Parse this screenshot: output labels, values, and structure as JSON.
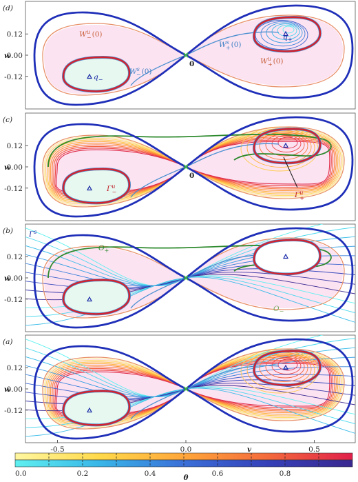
{
  "figure": {
    "panels": [
      {
        "tag": "(d)",
        "ylabel": "w",
        "yticks": [
          "0.12",
          "0.00",
          "-0.12"
        ],
        "annotations": {
          "Wu_minus": "W",
          "Wu_minus_sup": "u",
          "Wu_minus_sub": "−",
          "Wu_minus_arg": "(0)",
          "Ws_minus": "W",
          "Ws_minus_sup": "s",
          "Ws_minus_sub": "−",
          "Ws_minus_arg": "(0)",
          "Ws_plus": "W",
          "Ws_plus_sup": "s",
          "Ws_plus_sub": "+",
          "Ws_plus_arg": "(0)",
          "Wu_plus": "W",
          "Wu_plus_sup": "u",
          "Wu_plus_sub": "+",
          "Wu_plus_arg": "(0)",
          "origin": "0",
          "q_plus": "q",
          "q_plus_sub": "+",
          "q_minus": "q",
          "q_minus_sub": "−"
        }
      },
      {
        "tag": "(c)",
        "ylabel": "w",
        "yticks": [
          "0.12",
          "0.00",
          "-0.12"
        ],
        "annotations": {
          "origin": "0",
          "Gamma_minus": "Γ",
          "Gamma_minus_sup": "u",
          "Gamma_minus_sub": "−",
          "Gamma_plus": "Γ",
          "Gamma_plus_sup": "u",
          "Gamma_plus_sub": "+"
        }
      },
      {
        "tag": "(b)",
        "ylabel": "w",
        "yticks": [
          "0.12",
          "0.00",
          "-0.12"
        ],
        "annotations": {
          "Gamma_s": "Γ",
          "Gamma_s_sup": "s",
          "O_plus": "O",
          "O_plus_sub": "+",
          "O_minus": "O",
          "O_minus_sub": "−"
        }
      },
      {
        "tag": "(a)",
        "ylabel": "w",
        "yticks": [
          "0.12",
          "0.00",
          "-0.12"
        ],
        "annotations": {}
      }
    ],
    "xaxis": {
      "label": "v",
      "ticks": [
        "-0.5",
        "0.0",
        "0.5"
      ]
    },
    "colorbar": {
      "label": "θ",
      "ticks": [
        "0.0",
        "0.2",
        "0.4",
        "0.6",
        "0.8"
      ],
      "top_gradient": [
        "#fff8a0",
        "#ffd84a",
        "#ffa63a",
        "#f46a3c",
        "#e0204a"
      ],
      "bottom_gradient": [
        "#5ff0f0",
        "#38b6e8",
        "#3a6fd8",
        "#3540b8",
        "#3a2890"
      ]
    },
    "colors": {
      "outer_boundary": "#1f2fb8",
      "lobe_fill": "#fbe3f2",
      "inner_fill": "#e6f8ef",
      "inner_boundary": "#d4212c",
      "manifold_unstable": "#e8906a",
      "manifold_stable": "#4a8fd0",
      "periodic_orbit": "#2e8a2e",
      "origin_marker": "#3cbf3c",
      "equilibrium_marker": "#1a2aa8"
    }
  }
}
